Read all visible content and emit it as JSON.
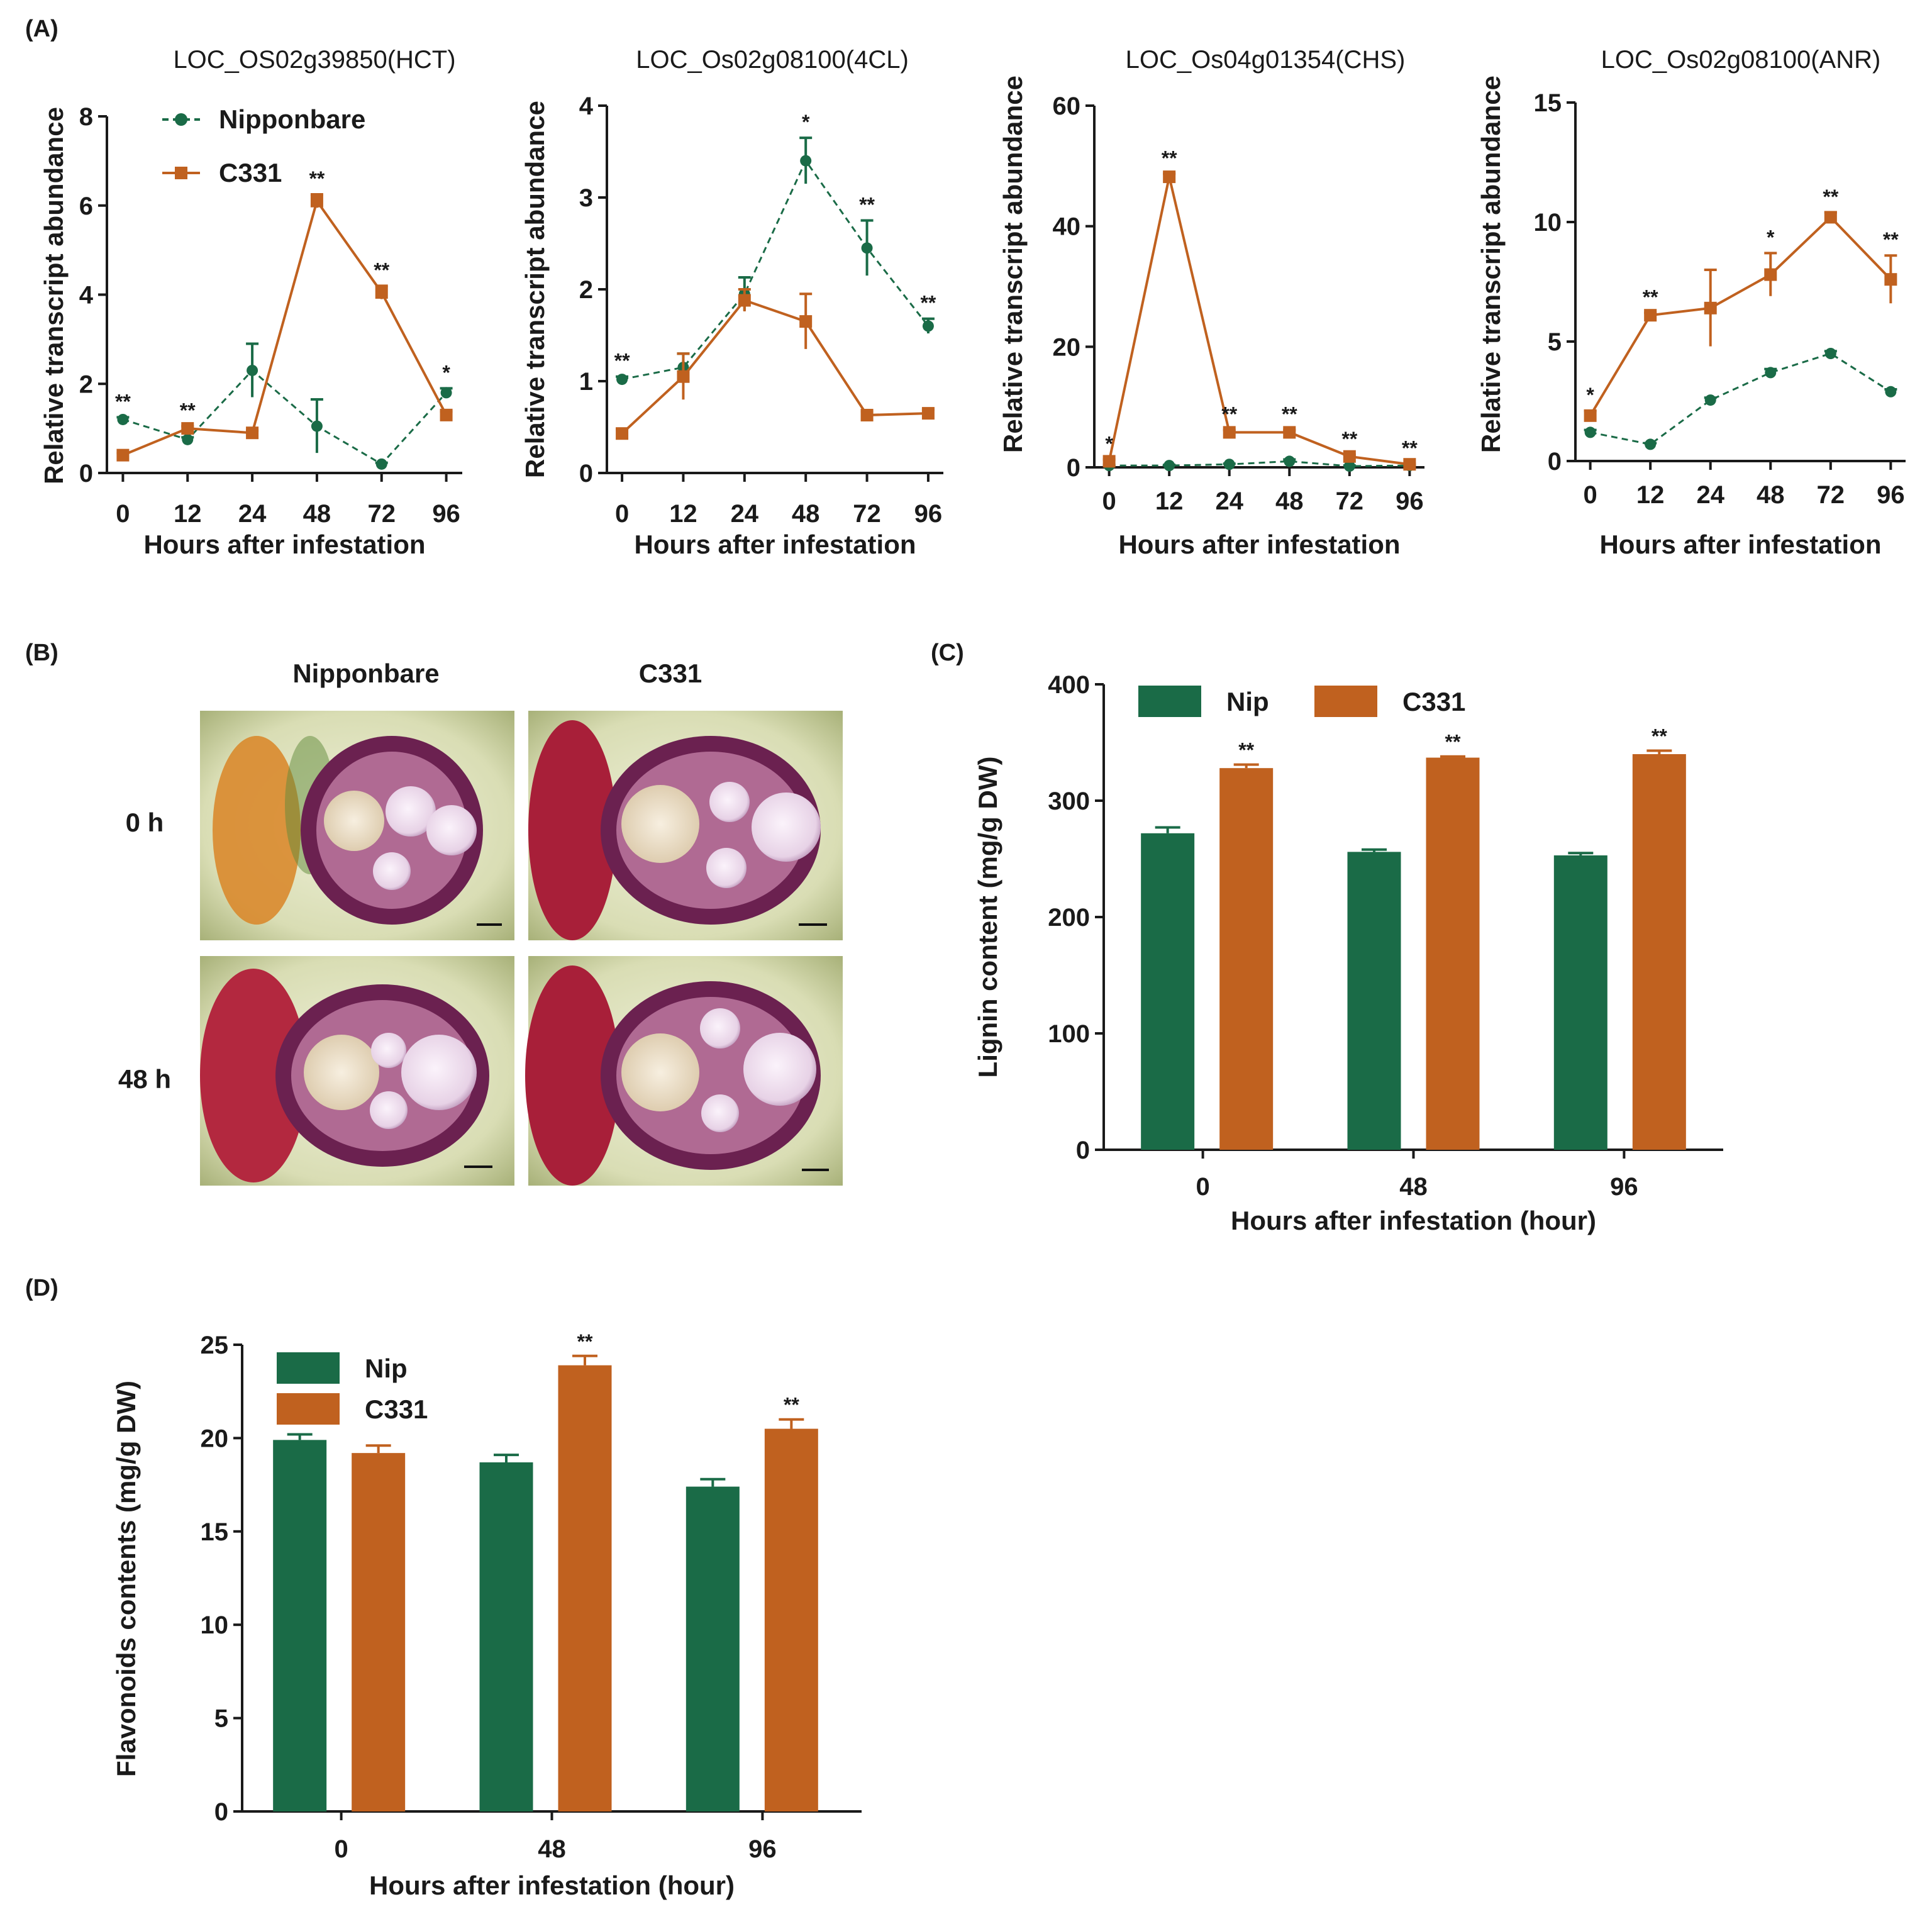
{
  "colors": {
    "nip": "#1a6b47",
    "c331": "#c0611f",
    "axis": "#1a1a1a"
  },
  "panels": {
    "A": {
      "label": "(A)"
    },
    "B": {
      "label": "(B)",
      "columns": [
        "Nipponbare",
        "C331"
      ],
      "rows": [
        "0 h",
        "48 h"
      ]
    },
    "C": {
      "label": "(C)"
    },
    "D": {
      "label": "(D)"
    }
  },
  "chart_data": [
    {
      "id": "A1",
      "type": "line",
      "title": "LOC_OS02g39850(HCT)",
      "xlabel": "Hours after infestation",
      "ylabel": "Relative transcript abundance",
      "categories": [
        "0",
        "12",
        "24",
        "48",
        "72",
        "96"
      ],
      "ylim": [
        0,
        8
      ],
      "yticks": [
        "0",
        "2",
        "4",
        "6",
        "8"
      ],
      "legend": [
        "Nipponbare",
        "C331"
      ],
      "series": [
        {
          "name": "Nipponbare",
          "values": [
            1.2,
            0.75,
            2.3,
            1.05,
            0.2,
            1.8
          ],
          "errors": [
            0.05,
            0.05,
            0.6,
            0.6,
            0.03,
            0.1
          ]
        },
        {
          "name": "C331",
          "values": [
            0.4,
            1.0,
            0.9,
            6.1,
            4.05,
            1.3
          ],
          "errors": [
            0.05,
            0.05,
            0.05,
            0.15,
            0.15,
            0.08
          ]
        }
      ],
      "annotations": [
        "**",
        "**",
        "",
        "**",
        "**",
        "*"
      ]
    },
    {
      "id": "A2",
      "type": "line",
      "title": "LOC_Os02g08100(4CL)",
      "xlabel": "Hours after infestation",
      "ylabel": "Relative transcript abundance",
      "categories": [
        "0",
        "12",
        "24",
        "48",
        "72",
        "96"
      ],
      "ylim": [
        0,
        4
      ],
      "yticks": [
        "0",
        "1",
        "2",
        "3",
        "4"
      ],
      "series": [
        {
          "name": "Nipponbare",
          "values": [
            1.02,
            1.15,
            1.95,
            3.4,
            2.45,
            1.6
          ],
          "errors": [
            0.03,
            0.15,
            0.18,
            0.25,
            0.3,
            0.08
          ]
        },
        {
          "name": "C331",
          "values": [
            0.43,
            1.05,
            1.88,
            1.65,
            0.63,
            0.65
          ],
          "errors": [
            0.05,
            0.25,
            0.12,
            0.3,
            0.04,
            0.04
          ]
        }
      ],
      "annotations": [
        "**",
        "",
        "",
        "*",
        "**",
        "**"
      ]
    },
    {
      "id": "A3",
      "type": "line",
      "title": "LOC_Os04g01354(CHS)",
      "xlabel": "Hours after infestation",
      "ylabel": "Relative transcript abundance",
      "categories": [
        "0",
        "12",
        "24",
        "48",
        "72",
        "96"
      ],
      "ylim": [
        0,
        60
      ],
      "yticks": [
        "0",
        "20",
        "40",
        "60"
      ],
      "series": [
        {
          "name": "Nipponbare",
          "values": [
            0.3,
            0.3,
            0.5,
            1.0,
            0.2,
            0.3
          ],
          "errors": [
            0.1,
            0.1,
            0.1,
            0.3,
            0.1,
            0.1
          ]
        },
        {
          "name": "C331",
          "values": [
            1.0,
            48.2,
            5.8,
            5.8,
            1.8,
            0.5
          ],
          "errors": [
            0.3,
            0.5,
            0.4,
            0.4,
            0.3,
            0.1
          ]
        }
      ],
      "annotations": [
        "*",
        "**",
        "**",
        "**",
        "**",
        "**"
      ]
    },
    {
      "id": "A4",
      "type": "line",
      "title": "LOC_Os02g08100(ANR)",
      "xlabel": "Hours after infestation",
      "ylabel": "Relative transcript abundance",
      "categories": [
        "0",
        "12",
        "24",
        "48",
        "72",
        "96"
      ],
      "ylim": [
        0,
        15
      ],
      "yticks": [
        "0",
        "5",
        "10",
        "15"
      ],
      "series": [
        {
          "name": "Nipponbare",
          "values": [
            1.2,
            0.7,
            2.55,
            3.7,
            4.5,
            2.9
          ],
          "errors": [
            0.1,
            0.05,
            0.1,
            0.15,
            0.1,
            0.1
          ]
        },
        {
          "name": "C331",
          "values": [
            1.9,
            6.1,
            6.4,
            7.8,
            10.2,
            7.6
          ],
          "errors": [
            0.2,
            0.1,
            1.6,
            0.9,
            0.2,
            1.0
          ]
        }
      ],
      "annotations": [
        "*",
        "**",
        "",
        "*",
        "**",
        "**"
      ]
    },
    {
      "id": "C",
      "type": "bar",
      "title": "",
      "xlabel": "Hours after infestation (hour)",
      "ylabel": "Lignin content (mg/g DW)",
      "categories": [
        "0",
        "48",
        "96"
      ],
      "ylim": [
        0,
        400
      ],
      "yticks": [
        "0",
        "100",
        "200",
        "300",
        "400"
      ],
      "legend": [
        "Nip",
        "C331"
      ],
      "series": [
        {
          "name": "Nip",
          "values": [
            272,
            256,
            253
          ],
          "errors": [
            5,
            2,
            2
          ]
        },
        {
          "name": "C331",
          "values": [
            328,
            337,
            340
          ],
          "errors": [
            3,
            1,
            3
          ]
        }
      ],
      "annotations": [
        "**",
        "**",
        "**"
      ]
    },
    {
      "id": "D",
      "type": "bar",
      "title": "",
      "xlabel": "Hours after infestation (hour)",
      "ylabel": "Flavonoids contents (mg/g DW)",
      "categories": [
        "0",
        "48",
        "96"
      ],
      "ylim": [
        0,
        25
      ],
      "yticks": [
        "0",
        "5",
        "10",
        "15",
        "20",
        "25"
      ],
      "legend": [
        "Nip",
        "C331"
      ],
      "series": [
        {
          "name": "Nip",
          "values": [
            19.9,
            18.7,
            17.4
          ],
          "errors": [
            0.3,
            0.4,
            0.4
          ]
        },
        {
          "name": "C331",
          "values": [
            19.2,
            23.9,
            20.5
          ],
          "errors": [
            0.4,
            0.5,
            0.5
          ]
        }
      ],
      "annotations": [
        "",
        "**",
        "**"
      ]
    }
  ]
}
